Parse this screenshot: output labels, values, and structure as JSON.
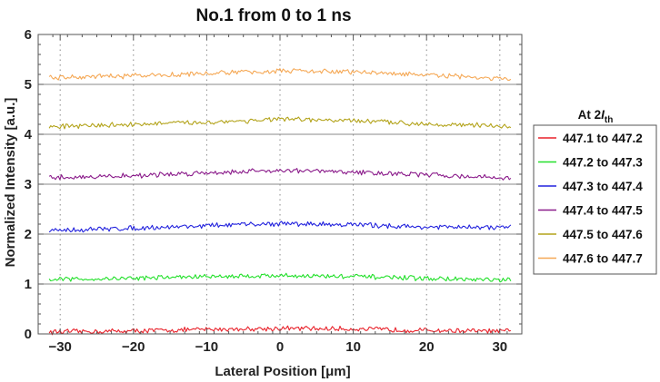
{
  "chart_data": {
    "type": "line",
    "title": "No.1  from 0 to 1 ns",
    "xlabel": "Lateral Position [μm]",
    "ylabel": "Normalized Intensity [a.u.]",
    "xlim": [
      -33,
      33
    ],
    "ylim": [
      0,
      6
    ],
    "xticks": [
      -30,
      -20,
      -10,
      0,
      10,
      20,
      30
    ],
    "yticks": [
      0,
      1,
      2,
      3,
      4,
      5,
      6
    ],
    "grid": {
      "x_dotted": true,
      "baselines": [
        1,
        2,
        3,
        4,
        5
      ]
    },
    "legend": {
      "title_prefix": "At 2",
      "title_italic": "I",
      "title_sub": "th",
      "placement": "right"
    },
    "x_range": [
      -31.5,
      31.5
    ],
    "series": [
      {
        "name": "447.1 to 447.2",
        "color": "#e8212a",
        "offset": 0,
        "profile": [
          [
            -31.5,
            0.04
          ],
          [
            -20,
            0.06
          ],
          [
            -10,
            0.09
          ],
          [
            0,
            0.11
          ],
          [
            10,
            0.1
          ],
          [
            20,
            0.07
          ],
          [
            31.5,
            0.05
          ]
        ]
      },
      {
        "name": "447.2 to 447.3",
        "color": "#22e02a",
        "offset": 1,
        "profile": [
          [
            -31.5,
            0.09
          ],
          [
            -20,
            0.12
          ],
          [
            -10,
            0.15
          ],
          [
            0,
            0.17
          ],
          [
            10,
            0.15
          ],
          [
            20,
            0.11
          ],
          [
            31.5,
            0.07
          ]
        ]
      },
      {
        "name": "447.3 to 447.4",
        "color": "#2222dd",
        "offset": 2,
        "profile": [
          [
            -31.5,
            0.07
          ],
          [
            -20,
            0.12
          ],
          [
            -10,
            0.17
          ],
          [
            0,
            0.21
          ],
          [
            10,
            0.19
          ],
          [
            20,
            0.14
          ],
          [
            31.5,
            0.13
          ]
        ]
      },
      {
        "name": "447.4 to 447.5",
        "color": "#8a1a8a",
        "offset": 3,
        "profile": [
          [
            -31.5,
            0.13
          ],
          [
            -20,
            0.17
          ],
          [
            -10,
            0.23
          ],
          [
            0,
            0.28
          ],
          [
            10,
            0.24
          ],
          [
            20,
            0.19
          ],
          [
            31.5,
            0.12
          ]
        ]
      },
      {
        "name": "447.5 to 447.6",
        "color": "#b3a31a",
        "offset": 4,
        "profile": [
          [
            -31.5,
            0.15
          ],
          [
            -20,
            0.2
          ],
          [
            -10,
            0.24
          ],
          [
            0,
            0.3
          ],
          [
            10,
            0.27
          ],
          [
            20,
            0.21
          ],
          [
            31.5,
            0.16
          ]
        ]
      },
      {
        "name": "447.6 to 447.7",
        "color": "#f5a855",
        "offset": 5,
        "profile": [
          [
            -31.5,
            0.13
          ],
          [
            -20,
            0.17
          ],
          [
            -10,
            0.22
          ],
          [
            0,
            0.27
          ],
          [
            10,
            0.25
          ],
          [
            20,
            0.19
          ],
          [
            31.5,
            0.1
          ]
        ]
      }
    ]
  }
}
